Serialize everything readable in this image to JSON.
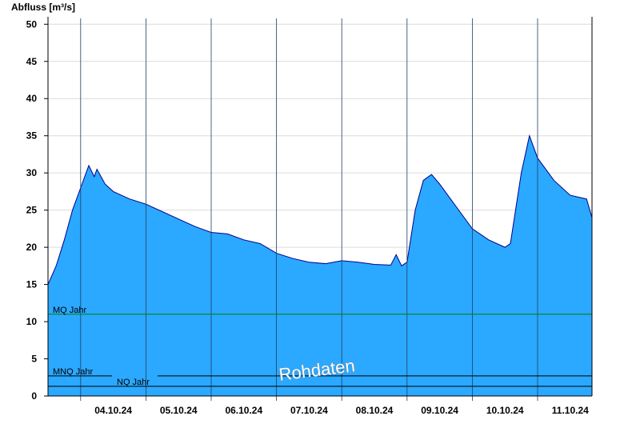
{
  "chart_data": {
    "type": "area",
    "ylabel": "Abfluss [m³/s]",
    "ylim": [
      0,
      51
    ],
    "yticks": [
      0,
      5,
      10,
      15,
      20,
      25,
      30,
      35,
      40,
      45,
      50
    ],
    "xlim": [
      "2024-10-03T12:00",
      "2024-10-11T20:00"
    ],
    "xticks": [
      {
        "label": "04.10.24",
        "date": "2024-10-04T12:00"
      },
      {
        "label": "05.10.24",
        "date": "2024-10-05T12:00"
      },
      {
        "label": "06.10.24",
        "date": "2024-10-06T12:00"
      },
      {
        "label": "07.10.24",
        "date": "2024-10-07T12:00"
      },
      {
        "label": "08.10.24",
        "date": "2024-10-08T12:00"
      },
      {
        "label": "09.10.24",
        "date": "2024-10-09T12:00"
      },
      {
        "label": "10.10.24",
        "date": "2024-10-10T12:00"
      },
      {
        "label": "11.10.24",
        "date": "2024-10-11T12:00"
      }
    ],
    "day_gridlines": [
      "2024-10-04T00:00",
      "2024-10-05T00:00",
      "2024-10-06T00:00",
      "2024-10-07T00:00",
      "2024-10-08T00:00",
      "2024-10-09T00:00",
      "2024-10-10T00:00",
      "2024-10-11T00:00"
    ],
    "grid": true,
    "series": [
      {
        "color": "#2ba8ff",
        "line_color": "#00008b",
        "points": [
          [
            "2024-10-03T12:00",
            15.0
          ],
          [
            "2024-10-03T15:00",
            17.5
          ],
          [
            "2024-10-03T18:00",
            21.0
          ],
          [
            "2024-10-03T21:00",
            25.0
          ],
          [
            "2024-10-04T00:00",
            28.0
          ],
          [
            "2024-10-04T03:00",
            31.0
          ],
          [
            "2024-10-04T05:00",
            29.5
          ],
          [
            "2024-10-04T06:00",
            30.5
          ],
          [
            "2024-10-04T09:00",
            28.5
          ],
          [
            "2024-10-04T12:00",
            27.5
          ],
          [
            "2024-10-04T18:00",
            26.5
          ],
          [
            "2024-10-05T00:00",
            25.8
          ],
          [
            "2024-10-05T06:00",
            24.8
          ],
          [
            "2024-10-05T12:00",
            23.8
          ],
          [
            "2024-10-05T18:00",
            22.8
          ],
          [
            "2024-10-06T00:00",
            22.0
          ],
          [
            "2024-10-06T06:00",
            21.8
          ],
          [
            "2024-10-06T12:00",
            21.0
          ],
          [
            "2024-10-06T18:00",
            20.5
          ],
          [
            "2024-10-07T00:00",
            19.2
          ],
          [
            "2024-10-07T06:00",
            18.5
          ],
          [
            "2024-10-07T12:00",
            18.0
          ],
          [
            "2024-10-07T18:00",
            17.8
          ],
          [
            "2024-10-08T00:00",
            18.2
          ],
          [
            "2024-10-08T06:00",
            18.0
          ],
          [
            "2024-10-08T12:00",
            17.7
          ],
          [
            "2024-10-08T18:00",
            17.6
          ],
          [
            "2024-10-08T20:00",
            19.0
          ],
          [
            "2024-10-08T22:00",
            17.5
          ],
          [
            "2024-10-09T00:00",
            18.0
          ],
          [
            "2024-10-09T03:00",
            25.0
          ],
          [
            "2024-10-09T06:00",
            29.0
          ],
          [
            "2024-10-09T09:00",
            29.8
          ],
          [
            "2024-10-09T12:00",
            28.5
          ],
          [
            "2024-10-09T18:00",
            25.5
          ],
          [
            "2024-10-10T00:00",
            22.5
          ],
          [
            "2024-10-10T06:00",
            21.0
          ],
          [
            "2024-10-10T12:00",
            20.0
          ],
          [
            "2024-10-10T14:00",
            20.5
          ],
          [
            "2024-10-10T18:00",
            30.0
          ],
          [
            "2024-10-10T21:00",
            35.0
          ],
          [
            "2024-10-11T00:00",
            32.0
          ],
          [
            "2024-10-11T06:00",
            29.0
          ],
          [
            "2024-10-11T12:00",
            27.0
          ],
          [
            "2024-10-11T18:00",
            26.5
          ],
          [
            "2024-10-11T20:00",
            24.0
          ]
        ]
      }
    ],
    "reference_lines": [
      {
        "label": "MQ Jahr",
        "value": 11.0,
        "color": "#008000"
      },
      {
        "label": "MNQ Jahr",
        "value": 2.7,
        "color": "#000000"
      },
      {
        "label": "NQ Jahr",
        "value": 1.3,
        "color": "#000000"
      }
    ],
    "watermark": "Rohdaten"
  }
}
